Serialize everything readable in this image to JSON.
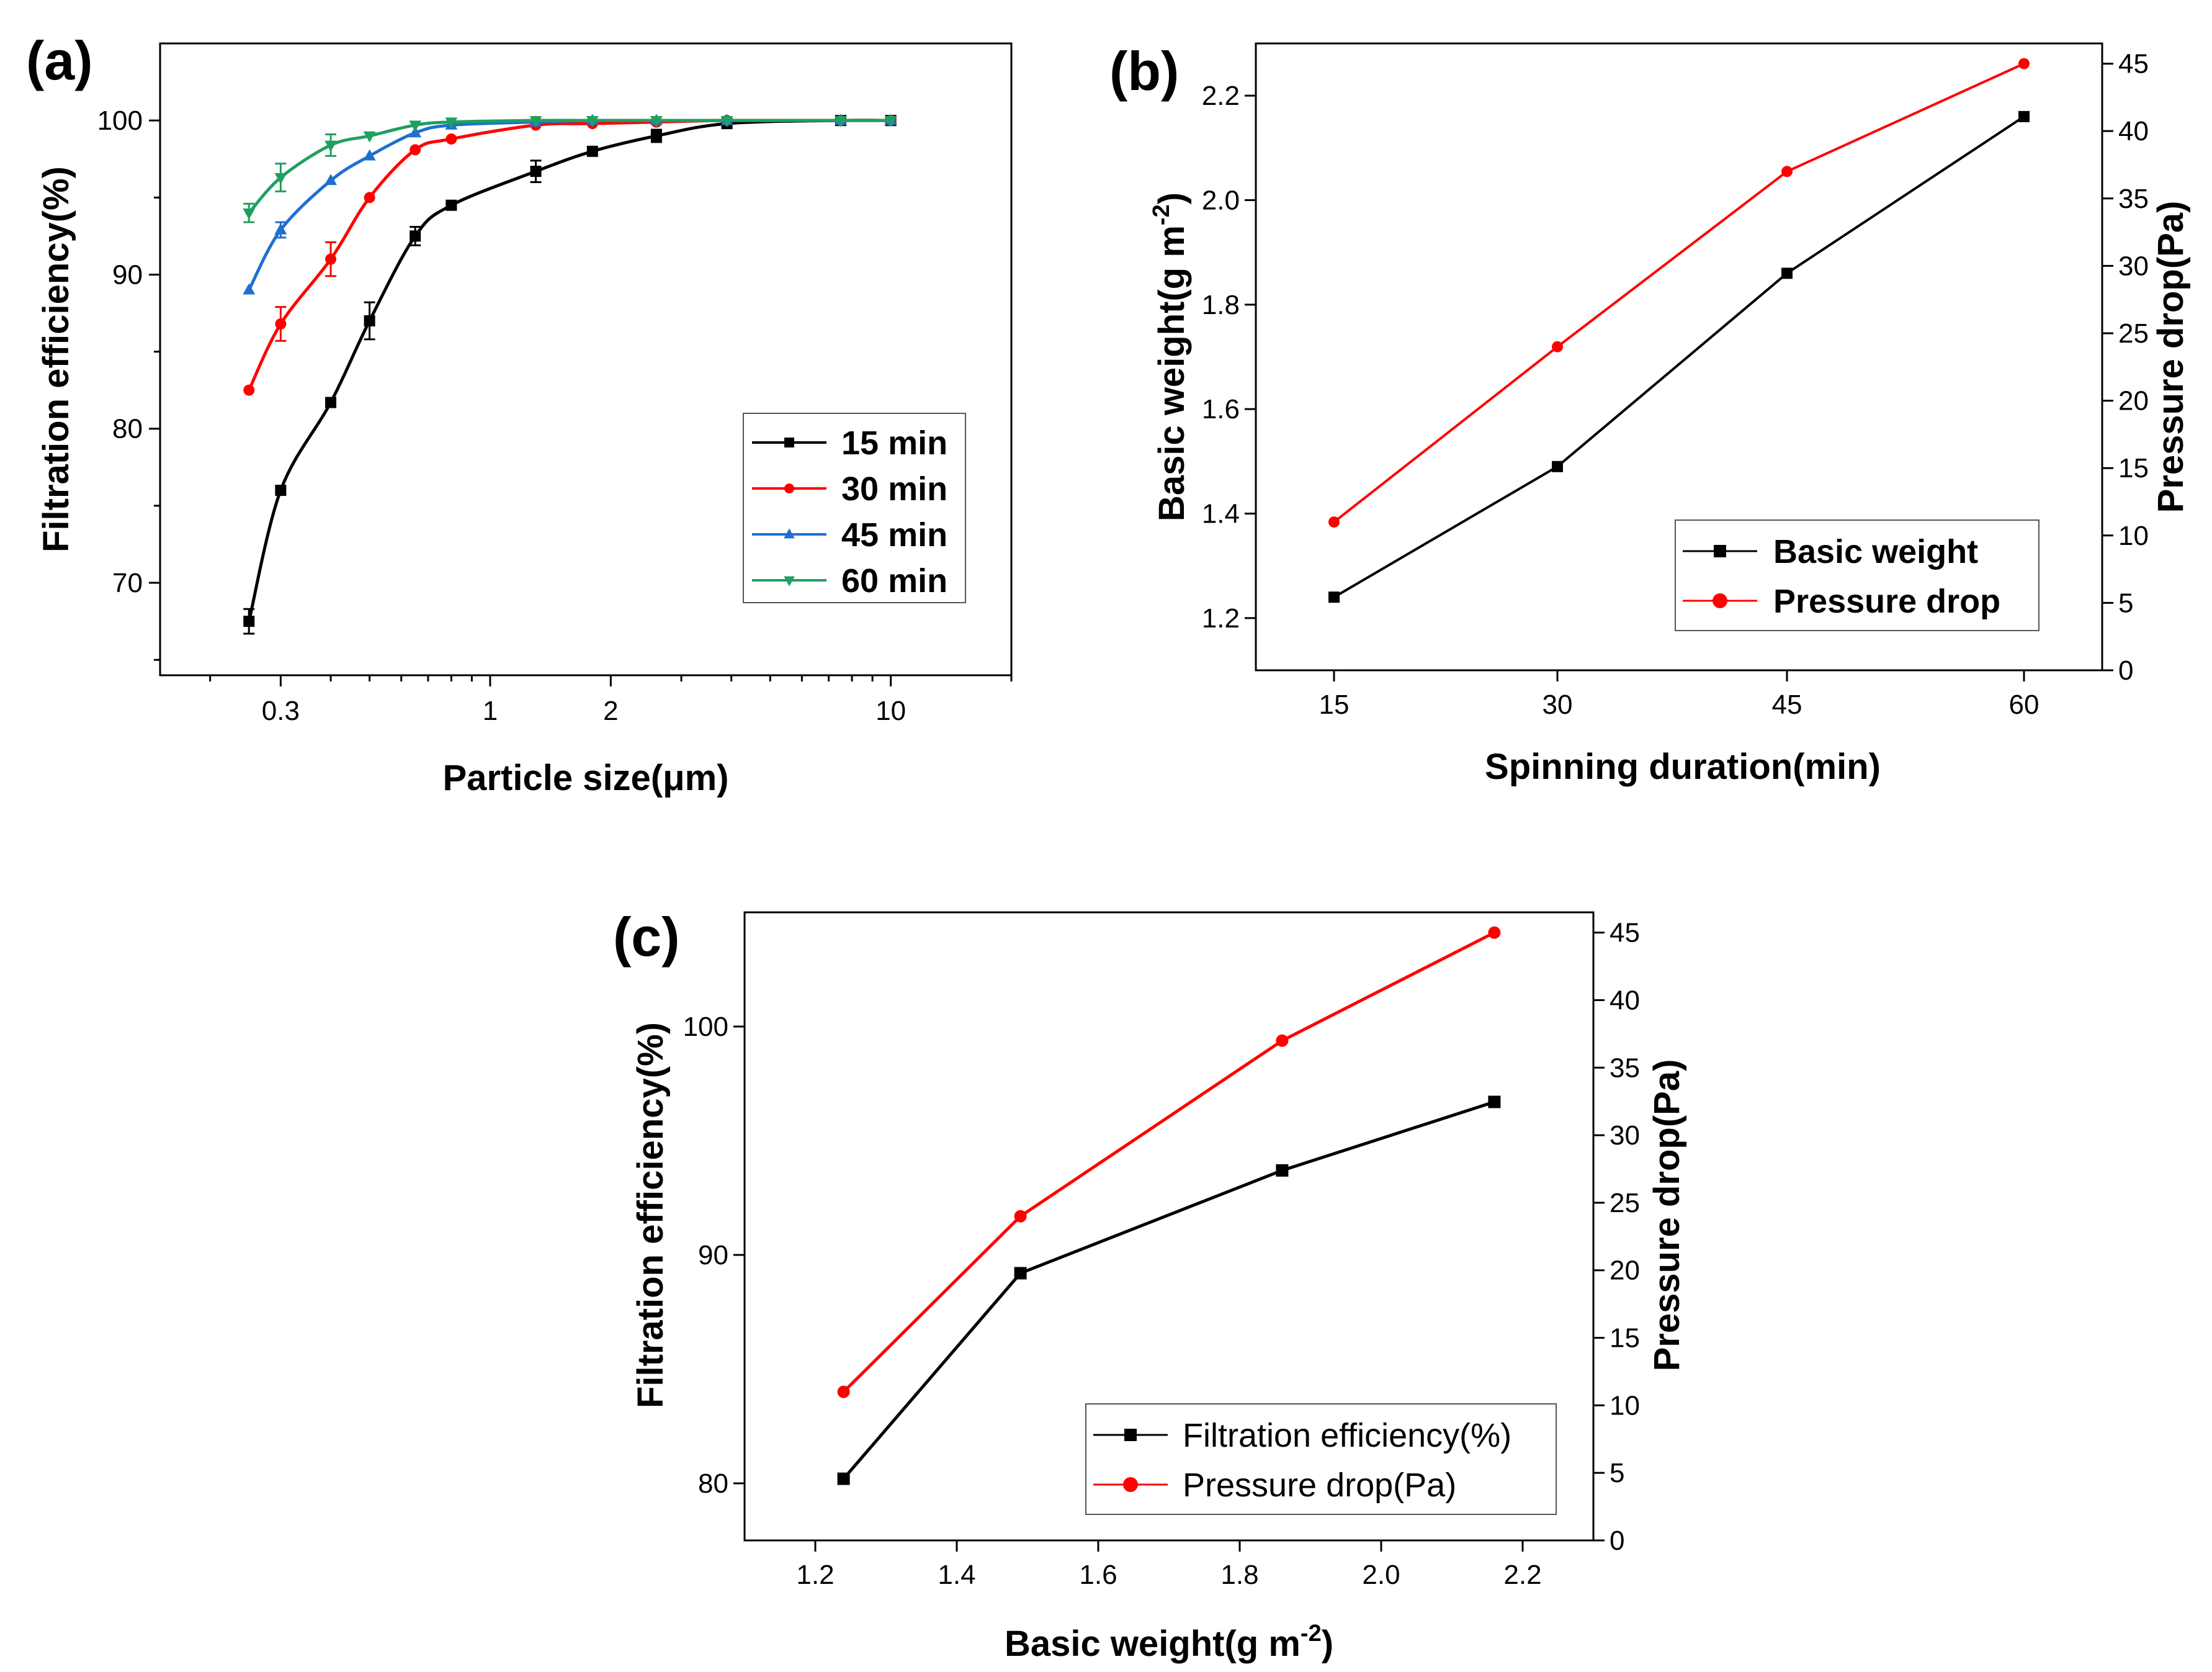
{
  "colors": {
    "black": "#000000",
    "red": "#ff0000",
    "blue": "#1f6fd1",
    "green": "#1fa060",
    "gray": "#404040"
  },
  "chart_data": [
    {
      "panel": "(a)",
      "type": "line",
      "xscale": "log",
      "xlabel": "Particle size(μm)",
      "ylabel": "Filtration efficiency(%)",
      "xlim": [
        0.15,
        20
      ],
      "ylim": [
        64,
        105
      ],
      "xticks": [
        0.3,
        1,
        2,
        10
      ],
      "xtick_labels": [
        "0.3",
        "1",
        "2",
        "10"
      ],
      "yticks": [
        70,
        80,
        90,
        100
      ],
      "legend_position": "bottom-right",
      "series": [
        {
          "name": "15 min",
          "color": "#000000",
          "marker": "square",
          "x": [
            0.25,
            0.3,
            0.4,
            0.5,
            0.65,
            0.8,
            1.3,
            1.8,
            2.6,
            3.9,
            7.5,
            10
          ],
          "y": [
            67.5,
            76,
            81.7,
            87,
            92.5,
            94.5,
            96.7,
            98,
            99,
            99.8,
            100,
            100
          ],
          "err": [
            0.8,
            0,
            0,
            1.2,
            0.6,
            0,
            0.7,
            0,
            0.4,
            0,
            0,
            0
          ]
        },
        {
          "name": "30 min",
          "color": "#ff0000",
          "marker": "circle",
          "x": [
            0.25,
            0.3,
            0.4,
            0.5,
            0.65,
            0.8,
            1.3,
            1.8,
            2.6,
            3.9,
            7.5,
            10
          ],
          "y": [
            82.5,
            86.8,
            91,
            95,
            98.1,
            98.8,
            99.7,
            99.8,
            99.9,
            100,
            100,
            100
          ],
          "err": [
            0,
            1.1,
            1.1,
            0,
            0,
            0,
            0,
            0,
            0,
            0,
            0,
            0
          ]
        },
        {
          "name": "45 min",
          "color": "#1f6fd1",
          "marker": "triangle-up",
          "x": [
            0.25,
            0.3,
            0.4,
            0.5,
            0.65,
            0.8,
            1.3,
            1.8,
            2.6,
            3.9,
            7.5,
            10
          ],
          "y": [
            89,
            92.9,
            96.1,
            97.7,
            99.2,
            99.7,
            99.9,
            100,
            100,
            100,
            100,
            100
          ],
          "err": [
            0,
            0.5,
            0,
            0,
            0,
            0,
            0,
            0,
            0,
            0,
            0,
            0
          ]
        },
        {
          "name": "60 min",
          "color": "#1fa060",
          "marker": "triangle-down",
          "x": [
            0.25,
            0.3,
            0.4,
            0.5,
            0.65,
            0.8,
            1.3,
            1.8,
            2.6,
            3.9,
            7.5,
            10
          ],
          "y": [
            94,
            96.3,
            98.4,
            99,
            99.7,
            99.9,
            100,
            100,
            100,
            100,
            100,
            100
          ],
          "err": [
            0.6,
            0.9,
            0.7,
            0,
            0,
            0,
            0,
            0,
            0,
            0,
            0,
            0
          ]
        }
      ]
    },
    {
      "panel": "(b)",
      "type": "line",
      "xlabel": "Spinning duration(min)",
      "ylabel_left": "Basic weight(g m",
      "ylabel_sup": "-2",
      "ylabel_left_close": ")",
      "ylabel_right": "Pressure drop(Pa)",
      "categories": [
        "15",
        "30",
        "45",
        "60"
      ],
      "ylim_left": [
        1.1,
        2.3
      ],
      "yticks_left": [
        "1.2",
        "1.4",
        "1.6",
        "1.8",
        "2.0",
        "2.2"
      ],
      "ylim_right": [
        0,
        46.5
      ],
      "yticks_right": [
        "0",
        "5",
        "10",
        "15",
        "20",
        "25",
        "30",
        "35",
        "40",
        "45"
      ],
      "legend_position": "bottom-right",
      "series": [
        {
          "name": "Basic weight",
          "axis": "left",
          "color": "#000000",
          "marker": "square",
          "values": [
            1.24,
            1.49,
            1.86,
            2.16
          ]
        },
        {
          "name": "Pressure drop",
          "axis": "right",
          "color": "#ff0000",
          "marker": "circle",
          "values": [
            11,
            24,
            37,
            45
          ]
        }
      ]
    },
    {
      "panel": "(c)",
      "type": "line",
      "xlabel": "Basic weight(g m",
      "xlabel_sup": "-2",
      "xlabel_close": ")",
      "ylabel_left": "Filtration efficiency(%)",
      "ylabel_right": "Pressure drop(Pa)",
      "xlim": [
        1.1,
        2.3
      ],
      "xticks": [
        "1.2",
        "1.4",
        "1.6",
        "1.8",
        "2.0",
        "2.2"
      ],
      "ylim_left": [
        77.5,
        105
      ],
      "yticks_left": [
        "80",
        "90",
        "100"
      ],
      "ylim_right": [
        0,
        46.5
      ],
      "yticks_right": [
        "0",
        "5",
        "10",
        "15",
        "20",
        "25",
        "30",
        "35",
        "40",
        "45"
      ],
      "legend_position": "bottom-right",
      "series": [
        {
          "name": "Filtration efficiency(%)",
          "axis": "left",
          "color": "#000000",
          "marker": "square",
          "x": [
            1.24,
            1.49,
            1.86,
            2.16
          ],
          "y": [
            80.2,
            89.2,
            93.7,
            96.7
          ]
        },
        {
          "name": "Pressure drop(Pa)",
          "axis": "right",
          "color": "#ff0000",
          "marker": "circle",
          "x": [
            1.24,
            1.49,
            1.86,
            2.16
          ],
          "y": [
            11,
            24,
            37,
            45
          ]
        }
      ]
    }
  ]
}
